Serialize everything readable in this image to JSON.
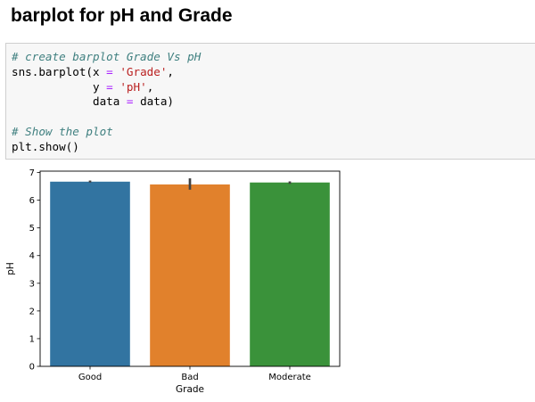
{
  "heading": "barplot for pH and Grade",
  "code": {
    "line1_comment": "# create barplot Grade Vs pH",
    "line2_fn": "sns.barplot(x ",
    "line2_eq": "=",
    "line2_sp": " ",
    "line2_str": "'Grade'",
    "line2_end": ",",
    "line3_indent": "            y ",
    "line3_eq": "=",
    "line3_sp": " ",
    "line3_str": "'pH'",
    "line3_end": ",",
    "line4_indent": "            data ",
    "line4_eq": "=",
    "line4_rest": " data)",
    "line6_comment": "# Show the plot",
    "line7": "plt.show()"
  },
  "chart_data": {
    "type": "bar",
    "categories": [
      "Good",
      "Bad",
      "Moderate"
    ],
    "values": [
      6.67,
      6.57,
      6.64
    ],
    "error_low": [
      6.64,
      6.38,
      6.59
    ],
    "error_high": [
      6.71,
      6.79,
      6.68
    ],
    "colors": [
      "#3274a1",
      "#e1812c",
      "#3a923a"
    ],
    "errbar_color": "#424242",
    "xlabel": "Grade",
    "ylabel": "pH",
    "ylim": [
      0,
      7.05
    ],
    "yticks": [
      "0",
      "1",
      "2",
      "3",
      "4",
      "5",
      "6",
      "7"
    ],
    "grid": false
  }
}
